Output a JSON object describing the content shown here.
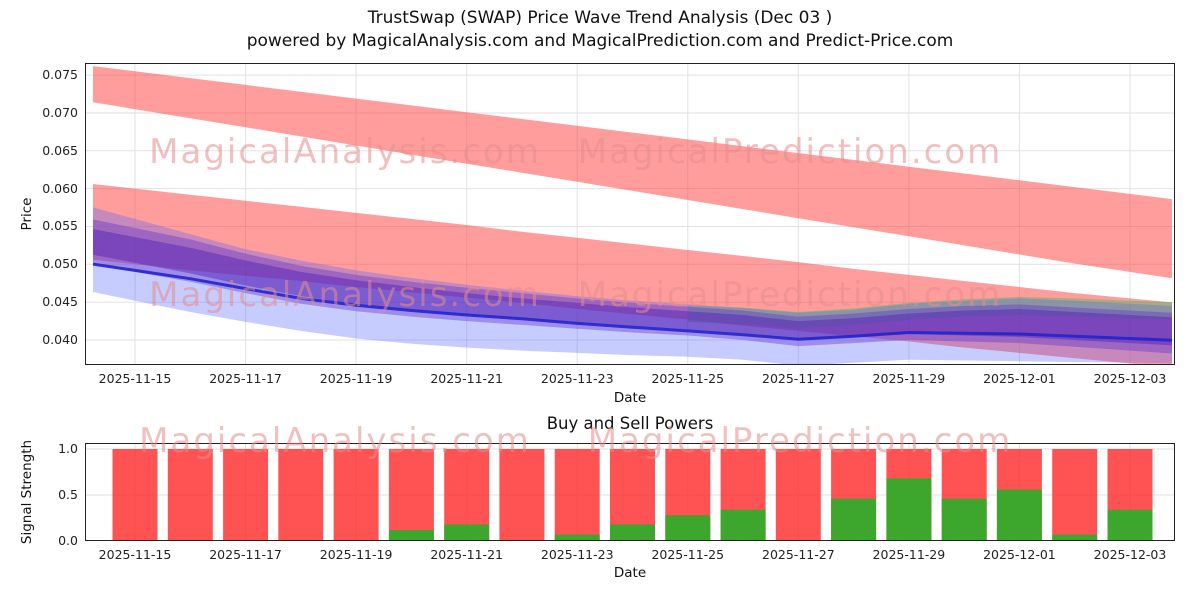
{
  "header": {
    "title": "TrustSwap (SWAP) Price Wave Trend Analysis (Dec 03 )",
    "subtitle": "powered by MagicalAnalysis.com and MagicalPrediction.com and Predict-Price.com"
  },
  "watermarks": {
    "analysis": "MagicalAnalysis.com",
    "prediction": "MagicalPrediction.com"
  },
  "chart_data": [
    {
      "type": "area",
      "title": "TrustSwap (SWAP) Price Wave Trend Analysis (Dec 03 )",
      "xlabel": "Date",
      "ylabel": "Price",
      "x": [
        "2025-11-15",
        "2025-11-16",
        "2025-11-17",
        "2025-11-18",
        "2025-11-19",
        "2025-11-20",
        "2025-11-21",
        "2025-11-22",
        "2025-11-23",
        "2025-11-24",
        "2025-11-25",
        "2025-11-26",
        "2025-11-27",
        "2025-11-28",
        "2025-11-29",
        "2025-11-30",
        "2025-12-01",
        "2025-12-02",
        "2025-12-03"
      ],
      "x_tick_indices": [
        0,
        2,
        4,
        6,
        8,
        10,
        12,
        14,
        16,
        18
      ],
      "ylim": [
        0.0367,
        0.0766
      ],
      "yticks": [
        0.075,
        0.07,
        0.065,
        0.06,
        0.055,
        0.05,
        0.045,
        0.04
      ],
      "grid": true,
      "bands": [
        {
          "name": "upper-forecast-band",
          "color": "rgba(255,60,60,0.5)",
          "upper": [
            0.0755,
            0.0746,
            0.0737,
            0.0728,
            0.0719,
            0.071,
            0.0701,
            0.0692,
            0.0683,
            0.0674,
            0.0665,
            0.0656,
            0.0647,
            0.0638,
            0.0629,
            0.062,
            0.0611,
            0.0602,
            0.0593
          ],
          "lower": [
            0.0705,
            0.0693,
            0.0681,
            0.0669,
            0.0657,
            0.0645,
            0.0633,
            0.0621,
            0.0609,
            0.0597,
            0.0585,
            0.0573,
            0.0561,
            0.0549,
            0.0537,
            0.0525,
            0.0513,
            0.0501,
            0.049
          ]
        },
        {
          "name": "lower-forecast-band",
          "color": "rgba(255,60,60,0.5)",
          "upper": [
            0.06,
            0.0592,
            0.0584,
            0.0576,
            0.0568,
            0.056,
            0.0552,
            0.0543,
            0.0535,
            0.0527,
            0.0519,
            0.0511,
            0.0503,
            0.0494,
            0.0486,
            0.0478,
            0.047,
            0.0462,
            0.0455
          ],
          "lower": [
            0.05,
            0.0492,
            0.0485,
            0.0478,
            0.047,
            0.0463,
            0.0456,
            0.0449,
            0.0441,
            0.0434,
            0.0427,
            0.0419,
            0.0412,
            0.0405,
            0.0398,
            0.039,
            0.0383,
            0.0376,
            0.0369
          ]
        },
        {
          "name": "green-wave-band",
          "color": "rgba(80,190,100,0.5)",
          "start_index": 10,
          "upper": [
            0.0446,
            0.0443,
            0.0437,
            0.0442,
            0.0449,
            0.0454,
            0.0457,
            0.0455,
            0.0452
          ],
          "lower": [
            0.0424,
            0.0421,
            0.0415,
            0.042,
            0.0427,
            0.0431,
            0.0433,
            0.0431,
            0.0429
          ]
        },
        {
          "name": "outer-wave-band",
          "color": "rgba(80,95,255,0.32)",
          "upper": [
            0.056,
            0.054,
            0.052,
            0.0505,
            0.0492,
            0.0482,
            0.0473,
            0.0465,
            0.0458,
            0.0452,
            0.0447,
            0.0442,
            0.0436,
            0.044,
            0.0448,
            0.0452,
            0.0455,
            0.0452,
            0.0448
          ],
          "lower": [
            0.0452,
            0.0437,
            0.0424,
            0.0412,
            0.0402,
            0.0395,
            0.039,
            0.0386,
            0.0383,
            0.038,
            0.0378,
            0.0374,
            0.0366,
            0.037,
            0.0374,
            0.0373,
            0.0372,
            0.0371,
            0.037
          ]
        },
        {
          "name": "inner-wave-band",
          "color": "rgba(100,50,200,0.4)",
          "upper": [
            0.0548,
            0.0533,
            0.0514,
            0.0498,
            0.0486,
            0.0477,
            0.0469,
            0.0462,
            0.0455,
            0.0449,
            0.0444,
            0.0439,
            0.0431,
            0.0435,
            0.0441,
            0.0445,
            0.0447,
            0.0443,
            0.0439
          ],
          "lower": [
            0.049,
            0.0477,
            0.0462,
            0.0448,
            0.0438,
            0.0431,
            0.0425,
            0.042,
            0.0415,
            0.041,
            0.0406,
            0.04,
            0.0392,
            0.0396,
            0.04,
            0.0398,
            0.0396,
            0.0391,
            0.0386
          ]
        },
        {
          "name": "core-wave-band",
          "color": "rgba(80,30,180,0.45)",
          "upper": [
            0.0536,
            0.0522,
            0.0505,
            0.049,
            0.0479,
            0.047,
            0.0462,
            0.0455,
            0.0449,
            0.0443,
            0.0438,
            0.0433,
            0.0425,
            0.0429,
            0.0435,
            0.0439,
            0.0441,
            0.0437,
            0.0433
          ],
          "lower": [
            0.0502,
            0.0488,
            0.0472,
            0.0458,
            0.0447,
            0.044,
            0.0433,
            0.0428,
            0.0423,
            0.0418,
            0.0414,
            0.0408,
            0.04,
            0.0404,
            0.0408,
            0.0406,
            0.0404,
            0.04,
            0.0396
          ]
        }
      ],
      "line": {
        "name": "price-line",
        "color": "rgba(35,35,205,0.9)",
        "values": [
          0.0492,
          0.0481,
          0.0468,
          0.0455,
          0.0446,
          0.0439,
          0.0433,
          0.0428,
          0.0422,
          0.0417,
          0.0412,
          0.0407,
          0.0401,
          0.0405,
          0.041,
          0.0409,
          0.0408,
          0.0405,
          0.0402
        ]
      }
    },
    {
      "type": "bar",
      "title": "Buy and Sell Powers",
      "xlabel": "Date",
      "ylabel": "Signal Strength",
      "categories": [
        "2025-11-15",
        "2025-11-16",
        "2025-11-17",
        "2025-11-18",
        "2025-11-19",
        "2025-11-20",
        "2025-11-21",
        "2025-11-22",
        "2025-11-23",
        "2025-11-24",
        "2025-11-25",
        "2025-11-26",
        "2025-11-27",
        "2025-11-28",
        "2025-11-29",
        "2025-11-30",
        "2025-12-01",
        "2025-12-02",
        "2025-12-03"
      ],
      "x_tick_indices": [
        0,
        2,
        4,
        6,
        8,
        10,
        12,
        14,
        16,
        18
      ],
      "ylim": [
        0,
        1.065
      ],
      "yticks": [
        0.0,
        0.5,
        1.0
      ],
      "grid": true,
      "series": [
        {
          "name": "sell-power",
          "color": "rgba(255,45,45,0.82)",
          "values": [
            1.0,
            1.0,
            1.0,
            1.0,
            1.0,
            1.0,
            1.0,
            1.0,
            1.0,
            1.0,
            1.0,
            1.0,
            1.0,
            1.0,
            1.0,
            1.0,
            1.0,
            1.0,
            1.0
          ]
        },
        {
          "name": "buy-power",
          "color": "rgba(40,175,40,0.9)",
          "values": [
            0,
            0,
            0,
            0,
            0,
            0.12,
            0.18,
            0,
            0.07,
            0.18,
            0.28,
            0.34,
            0,
            0.46,
            0.68,
            0.46,
            0.56,
            0.07,
            0.34
          ]
        }
      ]
    }
  ]
}
